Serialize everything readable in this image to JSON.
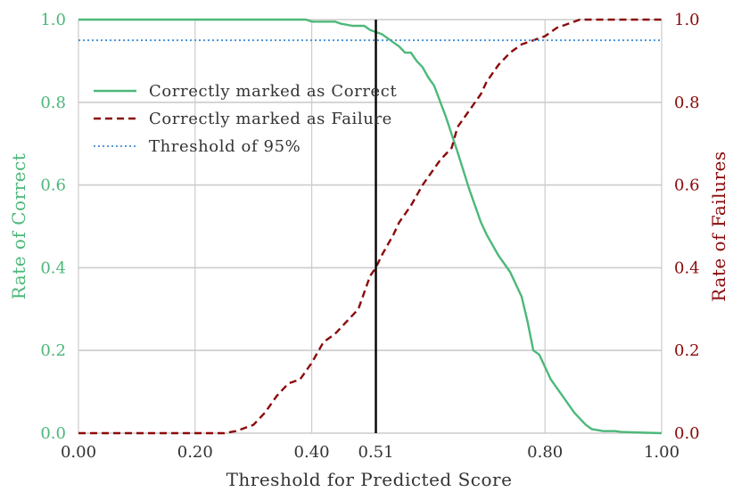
{
  "chart_data": {
    "type": "line",
    "xlabel": "Threshold for Predicted Score",
    "ylabel_left": "Rate of Correct",
    "ylabel_right": "Rate of Failures",
    "xlim": [
      0,
      1
    ],
    "ylim_left": [
      0,
      1
    ],
    "ylim_right": [
      0,
      1
    ],
    "x_ticks": [
      0.0,
      0.2,
      0.4,
      0.51,
      0.8,
      1.0
    ],
    "x_tick_labels": [
      "0.00",
      "0.20",
      "0.40",
      "0.51",
      "0.80",
      "1.00"
    ],
    "x_grid": [
      0.0,
      0.2,
      0.4,
      0.8,
      1.0
    ],
    "y_ticks": [
      0.0,
      0.2,
      0.4,
      0.6,
      0.8,
      1.0
    ],
    "y_tick_labels_left": [
      "0.0",
      "0.2",
      "0.4",
      "0.6",
      "0.8",
      "1.0"
    ],
    "y_tick_labels_right": [
      "0.0",
      "0.2",
      "0.4",
      "0.6",
      "0.8",
      "1.0"
    ],
    "grid": true,
    "legend_position": "upper-left",
    "vertical_line_x": 0.51,
    "series": [
      {
        "name": "Correctly marked as Correct",
        "axis": "left",
        "color": "#4cb87a",
        "style": "solid",
        "x": [
          0.0,
          0.1,
          0.2,
          0.3,
          0.35,
          0.39,
          0.4,
          0.44,
          0.45,
          0.47,
          0.49,
          0.5,
          0.52,
          0.55,
          0.56,
          0.57,
          0.58,
          0.59,
          0.6,
          0.61,
          0.63,
          0.65,
          0.67,
          0.69,
          0.7,
          0.72,
          0.74,
          0.76,
          0.77,
          0.78,
          0.79,
          0.8,
          0.81,
          0.83,
          0.85,
          0.86,
          0.87,
          0.88,
          0.9,
          0.92,
          0.93,
          0.95,
          1.0
        ],
        "y": [
          1.0,
          1.0,
          1.0,
          1.0,
          1.0,
          1.0,
          0.995,
          0.995,
          0.99,
          0.985,
          0.985,
          0.975,
          0.965,
          0.935,
          0.92,
          0.92,
          0.9,
          0.885,
          0.86,
          0.84,
          0.765,
          0.68,
          0.59,
          0.51,
          0.48,
          0.43,
          0.39,
          0.33,
          0.27,
          0.2,
          0.19,
          0.16,
          0.13,
          0.09,
          0.05,
          0.035,
          0.02,
          0.01,
          0.005,
          0.005,
          0.003,
          0.002,
          0.0
        ]
      },
      {
        "name": "Correctly marked as Failure",
        "axis": "right",
        "color": "#8b0a0a",
        "style": "dashed",
        "x": [
          0.0,
          0.1,
          0.2,
          0.25,
          0.27,
          0.3,
          0.32,
          0.34,
          0.36,
          0.38,
          0.4,
          0.42,
          0.44,
          0.46,
          0.48,
          0.5,
          0.51,
          0.52,
          0.54,
          0.55,
          0.57,
          0.59,
          0.6,
          0.62,
          0.64,
          0.65,
          0.67,
          0.69,
          0.7,
          0.72,
          0.74,
          0.76,
          0.78,
          0.8,
          0.82,
          0.84,
          0.86,
          1.0
        ],
        "y": [
          0.0,
          0.0,
          0.0,
          0.0,
          0.005,
          0.02,
          0.05,
          0.09,
          0.12,
          0.13,
          0.17,
          0.22,
          0.24,
          0.27,
          0.3,
          0.38,
          0.4,
          0.43,
          0.48,
          0.51,
          0.55,
          0.6,
          0.62,
          0.66,
          0.69,
          0.74,
          0.78,
          0.82,
          0.85,
          0.89,
          0.92,
          0.94,
          0.95,
          0.96,
          0.98,
          0.99,
          1.0,
          1.0
        ]
      },
      {
        "name": "Threshold of 95%",
        "axis": "left",
        "color": "#3d8fd6",
        "style": "dotted",
        "x": [
          0.0,
          1.0
        ],
        "y": [
          0.95,
          0.95
        ]
      }
    ],
    "colors": {
      "left_axis": "#4cb87a",
      "right_axis": "#8b0a0a",
      "x_axis": "#333333",
      "grid": "#cccccc",
      "vertical_line": "#000000"
    }
  }
}
